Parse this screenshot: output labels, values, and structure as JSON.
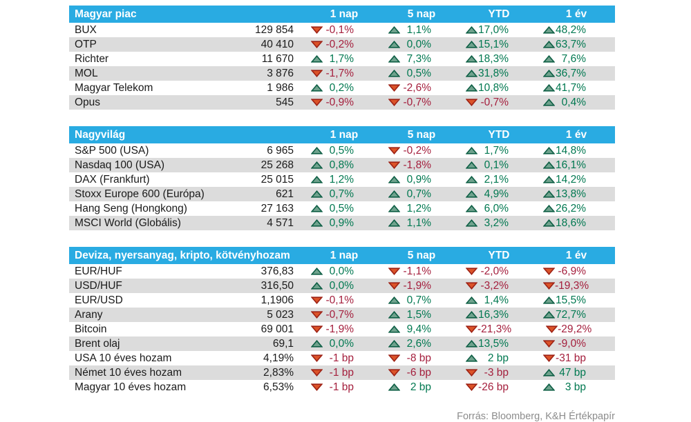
{
  "source_note": "Forrás: Bloomberg, K&H Értékpapír",
  "columns": [
    "1 nap",
    "5 nap",
    "YTD",
    "1 év"
  ],
  "colors": {
    "header_bg": "#29abe2",
    "header_text": "#ffffff",
    "row_alt_bg": "#dcdcdc",
    "body_text": "#1a1a1a",
    "positive": "#007850",
    "negative": "#a41e3c",
    "up_triangle_fill": "#6fa28d",
    "up_triangle_stroke": "#0e5f45",
    "down_triangle_fill": "#db5329",
    "down_triangle_stroke": "#9e2215",
    "footer_text": "#8c8c8c"
  },
  "icons": {
    "up": "up-triangle-icon",
    "down": "down-triangle-icon"
  },
  "sections": [
    {
      "title": "Magyar piac",
      "rows": [
        {
          "name": "BUX",
          "value": "129 854",
          "changes": [
            {
              "dir": "down",
              "value": "-0,1%"
            },
            {
              "dir": "up",
              "value": "1,1%"
            },
            {
              "dir": "up",
              "value": "17,0%"
            },
            {
              "dir": "up",
              "value": "48,2%"
            }
          ]
        },
        {
          "name": "OTP",
          "value": "40 410",
          "changes": [
            {
              "dir": "down",
              "value": "-0,2%"
            },
            {
              "dir": "up",
              "value": "0,0%"
            },
            {
              "dir": "up",
              "value": "15,1%"
            },
            {
              "dir": "up",
              "value": "63,7%"
            }
          ]
        },
        {
          "name": "Richter",
          "value": "11 670",
          "changes": [
            {
              "dir": "up",
              "value": "1,7%"
            },
            {
              "dir": "up",
              "value": "7,3%"
            },
            {
              "dir": "up",
              "value": "18,3%"
            },
            {
              "dir": "up",
              "value": "7,6%"
            }
          ]
        },
        {
          "name": "MOL",
          "value": "3 876",
          "changes": [
            {
              "dir": "down",
              "value": "-1,7%"
            },
            {
              "dir": "up",
              "value": "0,5%"
            },
            {
              "dir": "up",
              "value": "31,8%"
            },
            {
              "dir": "up",
              "value": "36,7%"
            }
          ]
        },
        {
          "name": "Magyar Telekom",
          "value": "1 986",
          "changes": [
            {
              "dir": "up",
              "value": "0,2%"
            },
            {
              "dir": "down",
              "value": "-2,6%"
            },
            {
              "dir": "up",
              "value": "10,8%"
            },
            {
              "dir": "up",
              "value": "41,7%"
            }
          ]
        },
        {
          "name": "Opus",
          "value": "545",
          "changes": [
            {
              "dir": "down",
              "value": "-0,9%"
            },
            {
              "dir": "down",
              "value": "-0,7%"
            },
            {
              "dir": "down",
              "value": "-0,7%"
            },
            {
              "dir": "up",
              "value": "0,4%"
            }
          ]
        }
      ]
    },
    {
      "title": "Nagyvilág",
      "rows": [
        {
          "name": "S&P 500 (USA)",
          "value": "6 965",
          "changes": [
            {
              "dir": "up",
              "value": "0,5%"
            },
            {
              "dir": "down",
              "value": "-0,2%"
            },
            {
              "dir": "up",
              "value": "1,7%"
            },
            {
              "dir": "up",
              "value": "14,8%"
            }
          ]
        },
        {
          "name": "Nasdaq 100 (USA)",
          "value": "25 268",
          "changes": [
            {
              "dir": "up",
              "value": "0,8%"
            },
            {
              "dir": "down",
              "value": "-1,8%"
            },
            {
              "dir": "up",
              "value": "0,1%"
            },
            {
              "dir": "up",
              "value": "16,1%"
            }
          ]
        },
        {
          "name": "DAX (Frankfurt)",
          "value": "25 015",
          "changes": [
            {
              "dir": "up",
              "value": "1,2%"
            },
            {
              "dir": "up",
              "value": "0,9%"
            },
            {
              "dir": "up",
              "value": "2,1%"
            },
            {
              "dir": "up",
              "value": "14,2%"
            }
          ]
        },
        {
          "name": "Stoxx Europe 600 (Európa)",
          "value": "621",
          "changes": [
            {
              "dir": "up",
              "value": "0,7%"
            },
            {
              "dir": "up",
              "value": "0,7%"
            },
            {
              "dir": "up",
              "value": "4,9%"
            },
            {
              "dir": "up",
              "value": "13,8%"
            }
          ]
        },
        {
          "name": "Hang Seng (Hongkong)",
          "value": "27 163",
          "changes": [
            {
              "dir": "up",
              "value": "0,5%"
            },
            {
              "dir": "up",
              "value": "1,2%"
            },
            {
              "dir": "up",
              "value": "6,0%"
            },
            {
              "dir": "up",
              "value": "26,2%"
            }
          ]
        },
        {
          "name": "MSCI World (Globális)",
          "value": "4 571",
          "changes": [
            {
              "dir": "up",
              "value": "0,9%"
            },
            {
              "dir": "up",
              "value": "1,1%"
            },
            {
              "dir": "up",
              "value": "3,2%"
            },
            {
              "dir": "up",
              "value": "18,6%"
            }
          ]
        }
      ]
    },
    {
      "title": "Deviza, nyersanyag, kripto, kötvényhozam",
      "rows": [
        {
          "name": "EUR/HUF",
          "value": "376,83",
          "changes": [
            {
              "dir": "up",
              "value": "0,0%"
            },
            {
              "dir": "down",
              "value": "-1,1%"
            },
            {
              "dir": "down",
              "value": "-2,0%"
            },
            {
              "dir": "down",
              "value": "-6,9%"
            }
          ]
        },
        {
          "name": "USD/HUF",
          "value": "316,50",
          "changes": [
            {
              "dir": "up",
              "value": "0,0%"
            },
            {
              "dir": "down",
              "value": "-1,9%"
            },
            {
              "dir": "down",
              "value": "-3,2%"
            },
            {
              "dir": "down",
              "value": "-19,3%"
            }
          ]
        },
        {
          "name": "EUR/USD",
          "value": "1,1906",
          "changes": [
            {
              "dir": "down",
              "value": "-0,1%"
            },
            {
              "dir": "up",
              "value": "0,7%"
            },
            {
              "dir": "up",
              "value": "1,4%"
            },
            {
              "dir": "up",
              "value": "15,5%"
            }
          ]
        },
        {
          "name": "Arany",
          "value": "5 023",
          "changes": [
            {
              "dir": "down",
              "value": "-0,7%"
            },
            {
              "dir": "up",
              "value": "1,5%"
            },
            {
              "dir": "up",
              "value": "16,3%"
            },
            {
              "dir": "up",
              "value": "72,7%"
            }
          ]
        },
        {
          "name": "Bitcoin",
          "value": "69 001",
          "changes": [
            {
              "dir": "down",
              "value": "-1,9%"
            },
            {
              "dir": "up",
              "value": "9,4%"
            },
            {
              "dir": "down",
              "value": "-21,3%"
            },
            {
              "dir": "down",
              "value": "-29,2%"
            }
          ]
        },
        {
          "name": "Brent olaj",
          "value": "69,1",
          "changes": [
            {
              "dir": "up",
              "value": "0,0%"
            },
            {
              "dir": "up",
              "value": "2,6%"
            },
            {
              "dir": "up",
              "value": "13,5%"
            },
            {
              "dir": "down",
              "value": "-9,0%"
            }
          ]
        },
        {
          "name": "USA 10 éves hozam",
          "value": "4,19%",
          "changes": [
            {
              "dir": "down",
              "value": "-1 bp"
            },
            {
              "dir": "down",
              "value": "-8 bp"
            },
            {
              "dir": "up",
              "value": "2 bp"
            },
            {
              "dir": "down",
              "value": "-31 bp"
            }
          ]
        },
        {
          "name": "Német 10 éves hozam",
          "value": "2,83%",
          "changes": [
            {
              "dir": "down",
              "value": "-1 bp"
            },
            {
              "dir": "down",
              "value": "-6 bp"
            },
            {
              "dir": "down",
              "value": "-3 bp"
            },
            {
              "dir": "up",
              "value": "47 bp"
            }
          ]
        },
        {
          "name": "Magyar 10 éves hozam",
          "value": "6,53%",
          "changes": [
            {
              "dir": "down",
              "value": "-1 bp"
            },
            {
              "dir": "up",
              "value": "2 bp"
            },
            {
              "dir": "down",
              "value": "-26 bp"
            },
            {
              "dir": "up",
              "value": "3 bp"
            }
          ]
        }
      ]
    }
  ]
}
